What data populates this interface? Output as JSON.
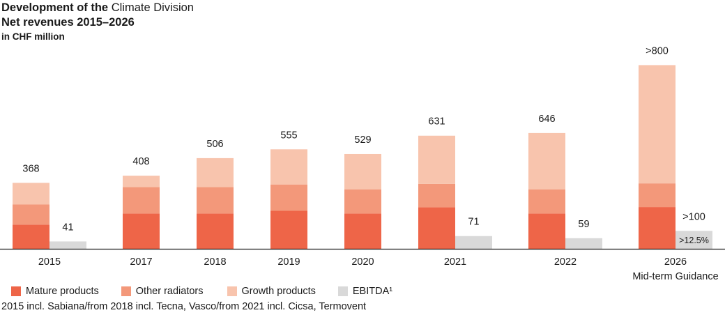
{
  "title_bold": "Development of the",
  "title_light": "Climate Division",
  "subtitle": "Net revenues 2015–2026",
  "unit_label": "in CHF million",
  "footnote": "2015 incl. Sabiana/from 2018 incl. Tecna, Vasco/from 2021 incl. Cicsa, Termovent",
  "colors": {
    "mature": "#ee6548",
    "other": "#f3987a",
    "growth": "#f8c4ad",
    "ebitda": "#d9d9d9",
    "axis": "#1a1a1a"
  },
  "legend": [
    {
      "label": "Mature products",
      "color_key": "mature"
    },
    {
      "label": "Other radiators",
      "color_key": "other"
    },
    {
      "label": "Growth products",
      "color_key": "growth"
    },
    {
      "label": "EBITDA¹",
      "color_key": "ebitda"
    }
  ],
  "chart_data": {
    "type": "bar",
    "stacked": true,
    "categories": [
      "2015",
      "2017",
      "2018",
      "2019",
      "2020",
      "2021",
      "2022",
      "2026"
    ],
    "category_sublabels": [
      "",
      "",
      "",
      "",
      "",
      "",
      "",
      "Mid-term Guidance"
    ],
    "series": [
      {
        "name": "Mature products",
        "values": [
          135,
          197,
          197,
          212,
          197,
          232,
          197,
          233
        ]
      },
      {
        "name": "Other radiators",
        "values": [
          112,
          147,
          147,
          147,
          135,
          130,
          135,
          132
        ]
      },
      {
        "name": "Growth products",
        "values": [
          121,
          64,
          162,
          196,
          197,
          269,
          314,
          660
        ]
      }
    ],
    "totals": [
      368,
      408,
      506,
      555,
      529,
      631,
      646,
      1025
    ],
    "total_labels": [
      "368",
      "408",
      "506",
      "555",
      "529",
      "631",
      "646",
      ">800"
    ],
    "ebitda": {
      "name": "EBITDA¹",
      "values": [
        41,
        null,
        null,
        null,
        null,
        71,
        59,
        100
      ],
      "labels": [
        "41",
        "",
        "",
        "",
        "",
        "71",
        "59",
        ">100"
      ],
      "inner_labels": [
        "",
        "",
        "",
        "",
        "",
        "",
        "",
        ">12.5%"
      ]
    },
    "ylim": [
      0,
      1050
    ],
    "grid": false,
    "legend_position": "bottom"
  }
}
